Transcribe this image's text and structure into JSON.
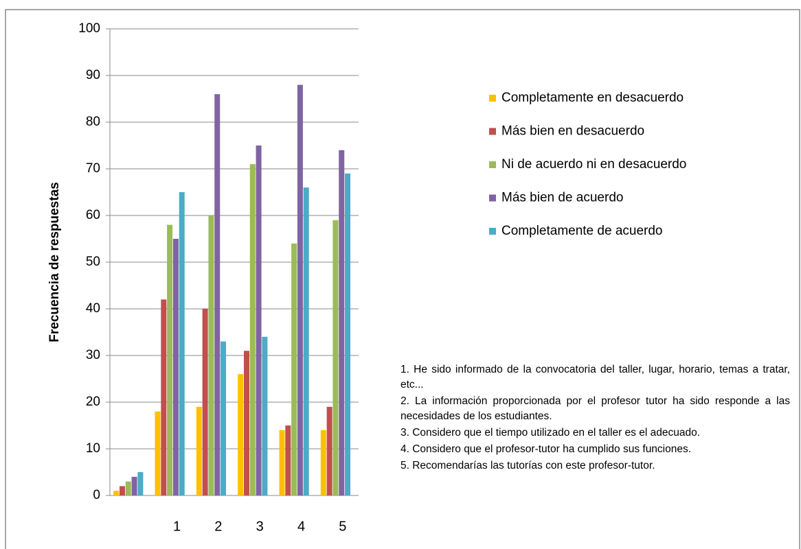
{
  "chart_data": {
    "type": "bar",
    "y_label": "Frecuencia de respuestas",
    "categories": [
      null,
      "1",
      "2",
      "3",
      "4",
      "5"
    ],
    "series": [
      {
        "name": "Completamente en desacuerdo",
        "color": "#ffc000",
        "values": [
          1,
          18,
          19,
          26,
          14,
          14
        ]
      },
      {
        "name": "Más bien en desacuerdo",
        "color": "#c0504d",
        "values": [
          2,
          42,
          40,
          31,
          15,
          19
        ]
      },
      {
        "name": "Ni de acuerdo ni en desacuerdo",
        "color": "#9bbb59",
        "values": [
          3,
          58,
          60,
          71,
          54,
          59
        ]
      },
      {
        "name": "Más bien de acuerdo",
        "color": "#8064a2",
        "values": [
          4,
          55,
          86,
          75,
          88,
          74
        ]
      },
      {
        "name": "Completamente de acuerdo",
        "color": "#4bacc6",
        "values": [
          5,
          65,
          33,
          34,
          66,
          69
        ]
      }
    ],
    "ylim": [
      0,
      100
    ],
    "yticks": [
      0,
      10,
      20,
      30,
      40,
      50,
      60,
      70,
      80,
      90,
      100
    ],
    "grid": true,
    "legend": "right",
    "notes": [
      "1. He sido informado de la convocatoria del taller, lugar, horario, temas a tratar, etc...",
      "2. La información proporcionada por el profesor tutor ha sido responde a las necesidades de los estudiantes.",
      "3. Considero que el tiempo utilizado en el taller es el adecuado.",
      "4. Considero que el profesor-tutor ha cumplido sus funciones.",
      "5. Recomendarías las tutorías con este profesor-tutor."
    ]
  }
}
